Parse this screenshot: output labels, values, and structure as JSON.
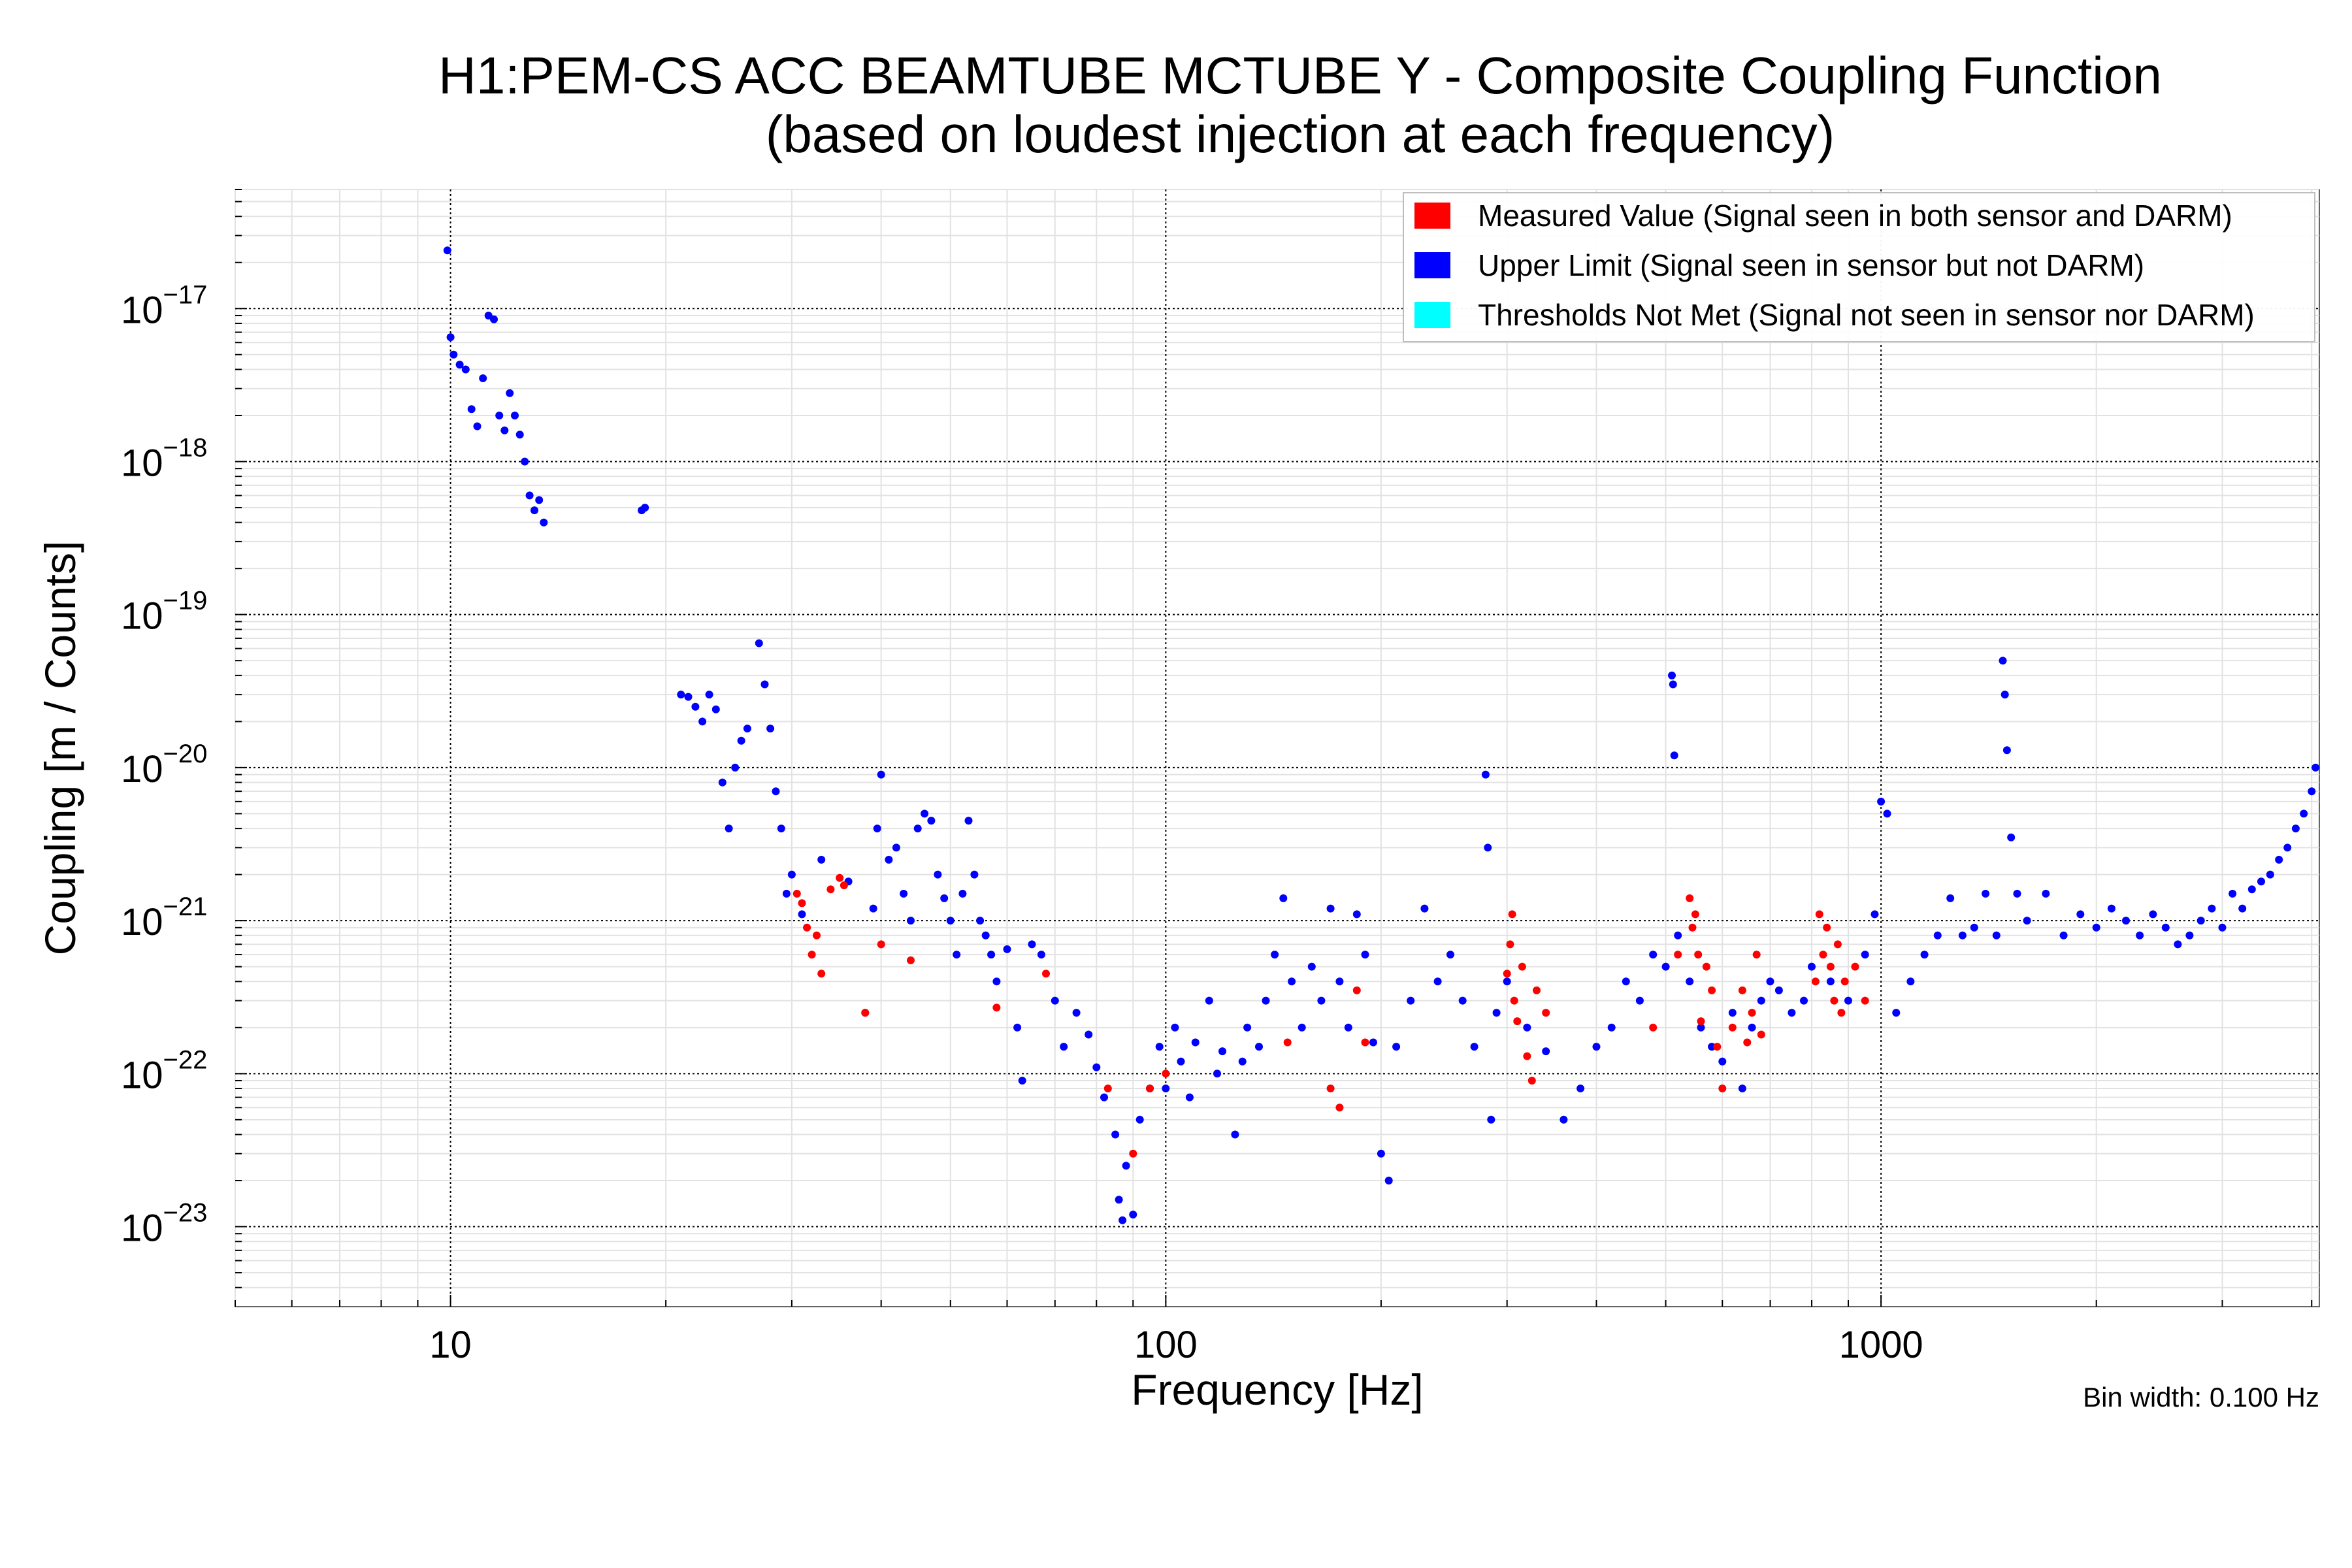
{
  "chart_data": {
    "type": "scatter",
    "title": "H1:PEM-CS ACC BEAMTUBE MCTUBE Y - Composite Coupling Function",
    "subtitle": "(based on loudest injection at each frequency)",
    "xlabel": "Frequency [Hz]",
    "ylabel": "Coupling [m / Counts]",
    "xscale": "log",
    "yscale": "log",
    "xlim": [
      5,
      4100
    ],
    "ylim": [
      3e-24,
      6e-17
    ],
    "grid": true,
    "legend_position": "top-right",
    "x_ticks": [
      {
        "value": 10,
        "label": "10"
      },
      {
        "value": 100,
        "label": "100"
      },
      {
        "value": 1000,
        "label": "1000"
      }
    ],
    "y_ticks": [
      {
        "value": 1e-17,
        "base": "10",
        "exp": "−17"
      },
      {
        "value": 1e-18,
        "base": "10",
        "exp": "−18"
      },
      {
        "value": 1e-19,
        "base": "10",
        "exp": "−19"
      },
      {
        "value": 1e-20,
        "base": "10",
        "exp": "−20"
      },
      {
        "value": 1e-21,
        "base": "10",
        "exp": "−21"
      },
      {
        "value": 1e-22,
        "base": "10",
        "exp": "−22"
      },
      {
        "value": 1e-23,
        "base": "10",
        "exp": "−23"
      }
    ],
    "series": [
      {
        "name": "Measured Value (Signal seen in both sensor and DARM)",
        "color": "#ff0000",
        "points": [
          [
            30.5,
            1.5e-21
          ],
          [
            31,
            1.3e-21
          ],
          [
            31.5,
            9e-22
          ],
          [
            32,
            6e-22
          ],
          [
            32.5,
            8e-22
          ],
          [
            33,
            4.5e-22
          ],
          [
            34,
            1.6e-21
          ],
          [
            35,
            1.9e-21
          ],
          [
            35.5,
            1.7e-21
          ],
          [
            38,
            2.5e-22
          ],
          [
            40,
            7e-22
          ],
          [
            44,
            5.5e-22
          ],
          [
            58,
            2.7e-22
          ],
          [
            68,
            4.5e-22
          ],
          [
            83,
            8e-23
          ],
          [
            90,
            3e-23
          ],
          [
            95,
            8e-23
          ],
          [
            100,
            1e-22
          ],
          [
            148,
            1.6e-22
          ],
          [
            170,
            8e-23
          ],
          [
            175,
            6e-23
          ],
          [
            185,
            3.5e-22
          ],
          [
            190,
            1.6e-22
          ],
          [
            300,
            4.5e-22
          ],
          [
            303,
            7e-22
          ],
          [
            305,
            1.1e-21
          ],
          [
            307,
            3e-22
          ],
          [
            310,
            2.2e-22
          ],
          [
            315,
            5e-22
          ],
          [
            320,
            1.3e-22
          ],
          [
            325,
            9e-23
          ],
          [
            330,
            3.5e-22
          ],
          [
            340,
            2.5e-22
          ],
          [
            480,
            2e-22
          ],
          [
            520,
            6e-22
          ],
          [
            540,
            1.4e-21
          ],
          [
            545,
            9e-22
          ],
          [
            550,
            1.1e-21
          ],
          [
            555,
            6e-22
          ],
          [
            560,
            2.2e-22
          ],
          [
            570,
            5e-22
          ],
          [
            580,
            3.5e-22
          ],
          [
            590,
            1.5e-22
          ],
          [
            600,
            8e-23
          ],
          [
            620,
            2e-22
          ],
          [
            640,
            3.5e-22
          ],
          [
            650,
            1.6e-22
          ],
          [
            660,
            2.5e-22
          ],
          [
            670,
            6e-22
          ],
          [
            680,
            1.8e-22
          ],
          [
            810,
            4e-22
          ],
          [
            820,
            1.1e-21
          ],
          [
            830,
            6e-22
          ],
          [
            840,
            9e-22
          ],
          [
            850,
            5e-22
          ],
          [
            860,
            3e-22
          ],
          [
            870,
            7e-22
          ],
          [
            880,
            2.5e-22
          ],
          [
            890,
            4e-22
          ],
          [
            920,
            5e-22
          ],
          [
            950,
            3e-22
          ]
        ]
      },
      {
        "name": "Upper Limit (Signal seen in sensor but not DARM)",
        "color": "#0000ff",
        "points": [
          [
            9.9,
            2.4e-17
          ],
          [
            10,
            6.5e-18
          ],
          [
            10.1,
            5e-18
          ],
          [
            10.3,
            4.3e-18
          ],
          [
            10.5,
            4e-18
          ],
          [
            10.7,
            2.2e-18
          ],
          [
            10.9,
            1.7e-18
          ],
          [
            11.1,
            3.5e-18
          ],
          [
            11.3,
            9e-18
          ],
          [
            11.5,
            8.5e-18
          ],
          [
            11.7,
            2e-18
          ],
          [
            11.9,
            1.6e-18
          ],
          [
            12.1,
            2.8e-18
          ],
          [
            12.3,
            2e-18
          ],
          [
            12.5,
            1.5e-18
          ],
          [
            12.7,
            1e-18
          ],
          [
            12.9,
            6e-19
          ],
          [
            13.1,
            4.8e-19
          ],
          [
            13.3,
            5.6e-19
          ],
          [
            13.5,
            4e-19
          ],
          [
            18.5,
            4.8e-19
          ],
          [
            18.7,
            5e-19
          ],
          [
            21,
            3e-20
          ],
          [
            21.5,
            2.9e-20
          ],
          [
            22,
            2.5e-20
          ],
          [
            22.5,
            2e-20
          ],
          [
            23,
            3e-20
          ],
          [
            23.5,
            2.4e-20
          ],
          [
            24,
            8e-21
          ],
          [
            24.5,
            4e-21
          ],
          [
            25,
            1e-20
          ],
          [
            25.5,
            1.5e-20
          ],
          [
            26,
            1.8e-20
          ],
          [
            27,
            6.5e-20
          ],
          [
            27.5,
            3.5e-20
          ],
          [
            28,
            1.8e-20
          ],
          [
            28.5,
            7e-21
          ],
          [
            29,
            4e-21
          ],
          [
            29.5,
            1.5e-21
          ],
          [
            30,
            2e-21
          ],
          [
            31,
            1.1e-21
          ],
          [
            33,
            2.5e-21
          ],
          [
            36,
            1.8e-21
          ],
          [
            38,
            2.5e-22
          ],
          [
            39,
            1.2e-21
          ],
          [
            39.5,
            4e-21
          ],
          [
            40,
            9e-21
          ],
          [
            41,
            2.5e-21
          ],
          [
            42,
            3e-21
          ],
          [
            43,
            1.5e-21
          ],
          [
            44,
            1e-21
          ],
          [
            45,
            4e-21
          ],
          [
            46,
            5e-21
          ],
          [
            47,
            4.5e-21
          ],
          [
            48,
            2e-21
          ],
          [
            49,
            1.4e-21
          ],
          [
            50,
            1e-21
          ],
          [
            51,
            6e-22
          ],
          [
            52,
            1.5e-21
          ],
          [
            53,
            4.5e-21
          ],
          [
            54,
            2e-21
          ],
          [
            55,
            1e-21
          ],
          [
            56,
            8e-22
          ],
          [
            57,
            6e-22
          ],
          [
            58,
            4e-22
          ],
          [
            60,
            6.5e-22
          ],
          [
            62,
            2e-22
          ],
          [
            63,
            9e-23
          ],
          [
            65,
            7e-22
          ],
          [
            67,
            6e-22
          ],
          [
            70,
            3e-22
          ],
          [
            72,
            1.5e-22
          ],
          [
            75,
            2.5e-22
          ],
          [
            78,
            1.8e-22
          ],
          [
            80,
            1.1e-22
          ],
          [
            82,
            7e-23
          ],
          [
            85,
            4e-23
          ],
          [
            86,
            1.5e-23
          ],
          [
            87,
            1.1e-23
          ],
          [
            88,
            2.5e-23
          ],
          [
            90,
            1.2e-23
          ],
          [
            92,
            5e-23
          ],
          [
            95,
            8e-23
          ],
          [
            98,
            1.5e-22
          ],
          [
            100,
            8e-23
          ],
          [
            103,
            2e-22
          ],
          [
            105,
            1.2e-22
          ],
          [
            108,
            7e-23
          ],
          [
            110,
            1.6e-22
          ],
          [
            115,
            3e-22
          ],
          [
            118,
            1e-22
          ],
          [
            120,
            1.4e-22
          ],
          [
            125,
            4e-23
          ],
          [
            128,
            1.2e-22
          ],
          [
            130,
            2e-22
          ],
          [
            135,
            1.5e-22
          ],
          [
            138,
            3e-22
          ],
          [
            142,
            6e-22
          ],
          [
            146,
            1.4e-21
          ],
          [
            150,
            4e-22
          ],
          [
            155,
            2e-22
          ],
          [
            160,
            5e-22
          ],
          [
            165,
            3e-22
          ],
          [
            170,
            1.2e-21
          ],
          [
            175,
            4e-22
          ],
          [
            180,
            2e-22
          ],
          [
            185,
            1.1e-21
          ],
          [
            190,
            6e-22
          ],
          [
            195,
            1.6e-22
          ],
          [
            200,
            3e-23
          ],
          [
            205,
            2e-23
          ],
          [
            210,
            1.5e-22
          ],
          [
            220,
            3e-22
          ],
          [
            230,
            1.2e-21
          ],
          [
            240,
            4e-22
          ],
          [
            250,
            6e-22
          ],
          [
            260,
            3e-22
          ],
          [
            270,
            1.5e-22
          ],
          [
            280,
            9e-21
          ],
          [
            282,
            3e-21
          ],
          [
            285,
            5e-23
          ],
          [
            290,
            2.5e-22
          ],
          [
            300,
            4e-22
          ],
          [
            320,
            2e-22
          ],
          [
            340,
            1.4e-22
          ],
          [
            360,
            5e-23
          ],
          [
            380,
            8e-23
          ],
          [
            400,
            1.5e-22
          ],
          [
            420,
            2e-22
          ],
          [
            440,
            4e-22
          ],
          [
            460,
            3e-22
          ],
          [
            480,
            6e-22
          ],
          [
            500,
            5e-22
          ],
          [
            510,
            4e-20
          ],
          [
            512,
            3.5e-20
          ],
          [
            514,
            1.2e-20
          ],
          [
            520,
            8e-22
          ],
          [
            540,
            4e-22
          ],
          [
            560,
            2e-22
          ],
          [
            580,
            1.5e-22
          ],
          [
            600,
            1.2e-22
          ],
          [
            620,
            2.5e-22
          ],
          [
            640,
            8e-23
          ],
          [
            660,
            2e-22
          ],
          [
            680,
            3e-22
          ],
          [
            700,
            4e-22
          ],
          [
            720,
            3.5e-22
          ],
          [
            750,
            2.5e-22
          ],
          [
            780,
            3e-22
          ],
          [
            800,
            5e-22
          ],
          [
            850,
            4e-22
          ],
          [
            900,
            3e-22
          ],
          [
            950,
            6e-22
          ],
          [
            980,
            1.1e-21
          ],
          [
            1000,
            6e-21
          ],
          [
            1020,
            5e-21
          ],
          [
            1050,
            2.5e-22
          ],
          [
            1100,
            4e-22
          ],
          [
            1150,
            6e-22
          ],
          [
            1200,
            8e-22
          ],
          [
            1250,
            1.4e-21
          ],
          [
            1300,
            8e-22
          ],
          [
            1350,
            9e-22
          ],
          [
            1400,
            1.5e-21
          ],
          [
            1450,
            8e-22
          ],
          [
            1480,
            5e-20
          ],
          [
            1490,
            3e-20
          ],
          [
            1500,
            1.3e-20
          ],
          [
            1520,
            3.5e-21
          ],
          [
            1550,
            1.5e-21
          ],
          [
            1600,
            1e-21
          ],
          [
            1700,
            1.5e-21
          ],
          [
            1800,
            8e-22
          ],
          [
            1900,
            1.1e-21
          ],
          [
            2000,
            9e-22
          ],
          [
            2100,
            1.2e-21
          ],
          [
            2200,
            1e-21
          ],
          [
            2300,
            8e-22
          ],
          [
            2400,
            1.1e-21
          ],
          [
            2500,
            9e-22
          ],
          [
            2600,
            7e-22
          ],
          [
            2700,
            8e-22
          ],
          [
            2800,
            1e-21
          ],
          [
            2900,
            1.2e-21
          ],
          [
            3000,
            9e-22
          ],
          [
            3100,
            1.5e-21
          ],
          [
            3200,
            1.2e-21
          ],
          [
            3300,
            1.6e-21
          ],
          [
            3400,
            1.8e-21
          ],
          [
            3500,
            2e-21
          ],
          [
            3600,
            2.5e-21
          ],
          [
            3700,
            3e-21
          ],
          [
            3800,
            4e-21
          ],
          [
            3900,
            5e-21
          ],
          [
            4000,
            7e-21
          ],
          [
            4050,
            1e-20
          ]
        ]
      },
      {
        "name": "Thresholds Not Met (Signal not seen in sensor nor DARM)",
        "color": "#00ffff",
        "points": []
      }
    ],
    "footnote": "Bin width: 0.100 Hz"
  }
}
